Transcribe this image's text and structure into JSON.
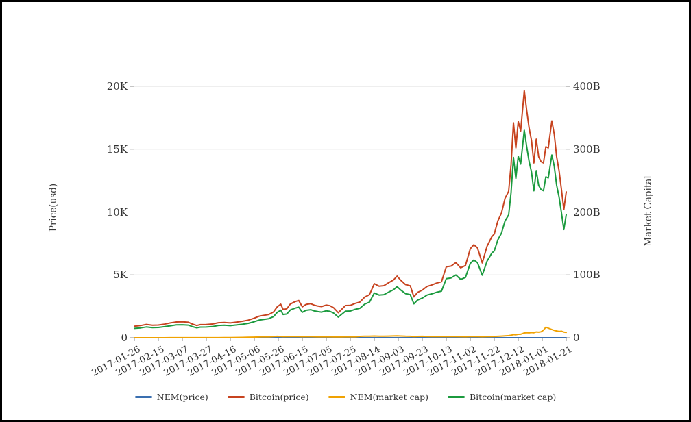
{
  "chart_data": {
    "type": "line",
    "title": "",
    "grid": true,
    "legend_position": "bottom",
    "left_axis": {
      "label": "Price(usd)",
      "max": 20000,
      "ticks": [
        {
          "value": 0,
          "label": "0"
        },
        {
          "value": 5000,
          "label": "5K"
        },
        {
          "value": 10000,
          "label": "10K"
        },
        {
          "value": 15000,
          "label": "15K"
        },
        {
          "value": 20000,
          "label": "20K"
        }
      ]
    },
    "right_axis": {
      "label": "Market Capital",
      "max": 400,
      "ticks": [
        {
          "value": 0,
          "label": "0"
        },
        {
          "value": 100,
          "label": "100B"
        },
        {
          "value": 200,
          "label": "200B"
        },
        {
          "value": 300,
          "label": "300B"
        },
        {
          "value": 400,
          "label": "400B"
        }
      ]
    },
    "x_axis": {
      "label": "",
      "range_days": [
        0,
        360
      ],
      "ticks": [
        {
          "day": 0,
          "label": "2017-01-26"
        },
        {
          "day": 20,
          "label": "2017-02-15"
        },
        {
          "day": 40,
          "label": "2017-03-07"
        },
        {
          "day": 60,
          "label": "2017-03-27"
        },
        {
          "day": 80,
          "label": "2017-04-16"
        },
        {
          "day": 100,
          "label": "2017-05-06"
        },
        {
          "day": 120,
          "label": "2017-05-26"
        },
        {
          "day": 140,
          "label": "2017-06-15"
        },
        {
          "day": 160,
          "label": "2017-07-05"
        },
        {
          "day": 180,
          "label": "2017-07-25"
        },
        {
          "day": 200,
          "label": "2017-08-14"
        },
        {
          "day": 220,
          "label": "2017-09-03"
        },
        {
          "day": 240,
          "label": "2017-09-23"
        },
        {
          "day": 260,
          "label": "2017-10-13"
        },
        {
          "day": 280,
          "label": "2017-11-02"
        },
        {
          "day": 300,
          "label": "2017-11-22"
        },
        {
          "day": 320,
          "label": "2017-12-12"
        },
        {
          "day": 340,
          "label": "2018-01-01"
        },
        {
          "day": 360,
          "label": "2018-01-21"
        }
      ]
    },
    "days": [
      0,
      5,
      10,
      15,
      20,
      25,
      30,
      35,
      40,
      45,
      48,
      52,
      55,
      60,
      65,
      70,
      75,
      80,
      85,
      90,
      95,
      100,
      104,
      108,
      112,
      116,
      119,
      122,
      124,
      127,
      130,
      134,
      137,
      140,
      143,
      147,
      150,
      153,
      156,
      160,
      163,
      166,
      170,
      173,
      176,
      180,
      184,
      188,
      192,
      196,
      200,
      204,
      208,
      212,
      216,
      219,
      222,
      226,
      230,
      233,
      236,
      240,
      244,
      248,
      252,
      256,
      260,
      264,
      268,
      272,
      276,
      280,
      283,
      286,
      290,
      294,
      298,
      300,
      303,
      306,
      309,
      312,
      314,
      316,
      318,
      320,
      322,
      325,
      327,
      329,
      331,
      333,
      335,
      337,
      339,
      341,
      343,
      345,
      348,
      350,
      352,
      354,
      356,
      358,
      360
    ],
    "series": [
      {
        "name": "NEM(price)",
        "axis": "left",
        "color": "#3a6fb0",
        "values": [
          0.004,
          0.004,
          0.005,
          0.005,
          0.005,
          0.006,
          0.007,
          0.007,
          0.007,
          0.008,
          0.008,
          0.008,
          0.009,
          0.01,
          0.012,
          0.015,
          0.025,
          0.035,
          0.045,
          0.06,
          0.085,
          0.105,
          0.145,
          0.18,
          0.175,
          0.22,
          0.26,
          0.23,
          0.19,
          0.2,
          0.215,
          0.23,
          0.22,
          0.185,
          0.2,
          0.195,
          0.18,
          0.17,
          0.165,
          0.175,
          0.165,
          0.155,
          0.14,
          0.16,
          0.17,
          0.165,
          0.175,
          0.24,
          0.28,
          0.27,
          0.3,
          0.28,
          0.27,
          0.29,
          0.31,
          0.33,
          0.3,
          0.27,
          0.26,
          0.22,
          0.24,
          0.25,
          0.23,
          0.22,
          0.21,
          0.205,
          0.22,
          0.215,
          0.21,
          0.195,
          0.185,
          0.205,
          0.21,
          0.2,
          0.185,
          0.2,
          0.22,
          0.23,
          0.26,
          0.29,
          0.33,
          0.38,
          0.43,
          0.56,
          0.52,
          0.6,
          0.62,
          0.85,
          0.9,
          0.86,
          0.92,
          0.88,
          1.02,
          0.98,
          1.05,
          1.35,
          1.87,
          1.7,
          1.45,
          1.3,
          1.2,
          1.1,
          1.15,
          1.0,
          0.95
        ]
      },
      {
        "name": "Bitcoin(price)",
        "axis": "left",
        "color": "#c7431f",
        "values": [
          915,
          965,
          1055,
          995,
          1010,
          1080,
          1175,
          1255,
          1270,
          1230,
          1100,
          970,
          1040,
          1045,
          1090,
          1195,
          1215,
          1175,
          1245,
          1310,
          1400,
          1560,
          1710,
          1780,
          1850,
          2050,
          2450,
          2670,
          2250,
          2300,
          2680,
          2870,
          2960,
          2460,
          2650,
          2710,
          2590,
          2520,
          2480,
          2600,
          2550,
          2390,
          1990,
          2280,
          2560,
          2570,
          2730,
          2840,
          3230,
          3430,
          4300,
          4100,
          4140,
          4380,
          4600,
          4900,
          4580,
          4230,
          4130,
          3250,
          3600,
          3790,
          4080,
          4200,
          4350,
          4450,
          5640,
          5700,
          5980,
          5560,
          5750,
          7080,
          7400,
          7150,
          5950,
          7280,
          8040,
          8250,
          9300,
          9920,
          11100,
          11650,
          13750,
          17100,
          15100,
          17200,
          16450,
          19650,
          18100,
          16700,
          15700,
          13900,
          15800,
          14400,
          14000,
          13900,
          15200,
          15100,
          17250,
          16200,
          14400,
          13300,
          11800,
          10200,
          11600
        ]
      },
      {
        "name": "NEM(market cap)",
        "axis": "right",
        "color": "#f0a202",
        "values": [
          0.04,
          0.04,
          0.05,
          0.05,
          0.05,
          0.05,
          0.06,
          0.06,
          0.06,
          0.07,
          0.07,
          0.07,
          0.08,
          0.09,
          0.11,
          0.14,
          0.23,
          0.32,
          0.41,
          0.54,
          0.77,
          0.95,
          1.31,
          1.62,
          1.58,
          1.98,
          2.34,
          2.07,
          1.71,
          1.8,
          1.94,
          2.07,
          1.98,
          1.67,
          1.8,
          1.76,
          1.62,
          1.53,
          1.49,
          1.58,
          1.49,
          1.4,
          1.26,
          1.44,
          1.53,
          1.49,
          1.58,
          2.16,
          2.52,
          2.43,
          2.7,
          2.52,
          2.43,
          2.61,
          2.79,
          2.97,
          2.7,
          2.43,
          2.34,
          1.98,
          2.16,
          2.25,
          2.07,
          1.98,
          1.89,
          1.85,
          1.98,
          1.94,
          1.89,
          1.76,
          1.67,
          1.85,
          1.89,
          1.8,
          1.67,
          1.8,
          1.98,
          2.07,
          2.34,
          2.61,
          2.97,
          3.42,
          3.87,
          5.04,
          4.68,
          5.4,
          5.58,
          7.65,
          8.1,
          7.74,
          8.28,
          7.92,
          9.18,
          8.82,
          9.45,
          12.15,
          16.83,
          15.3,
          13.05,
          11.7,
          10.8,
          9.9,
          10.35,
          9.0,
          8.55
        ]
      },
      {
        "name": "Bitcoin(market cap)",
        "axis": "right",
        "color": "#1b9a3e",
        "values": [
          14.8,
          15.6,
          17.1,
          16.1,
          16.4,
          17.5,
          19.0,
          20.4,
          20.6,
          20.0,
          17.9,
          15.8,
          16.9,
          17.0,
          17.7,
          19.5,
          19.8,
          19.2,
          20.3,
          21.4,
          22.9,
          25.5,
          28.0,
          29.1,
          30.3,
          33.6,
          40.2,
          43.8,
          36.9,
          37.7,
          44.0,
          47.1,
          48.6,
          40.4,
          43.6,
          44.6,
          42.6,
          41.5,
          40.8,
          42.8,
          42.0,
          39.4,
          32.8,
          37.6,
          42.2,
          42.4,
          45.1,
          46.9,
          53.4,
          56.7,
          71.2,
          67.9,
          68.6,
          72.6,
          76.3,
          81.3,
          76.0,
          70.2,
          68.6,
          54.0,
          59.8,
          63.0,
          67.9,
          69.9,
          72.4,
          74.1,
          94.0,
          95.1,
          99.8,
          92.8,
          96.0,
          118.3,
          123.7,
          119.5,
          99.5,
          121.9,
          134.7,
          138.2,
          155.9,
          166.3,
          186.1,
          195.4,
          230.7,
          286.9,
          253.5,
          288.8,
          276.2,
          330.1,
          304.1,
          280.7,
          263.9,
          233.8,
          265.8,
          242.2,
          235.6,
          233.9,
          256.0,
          254.3,
          290.7,
          273.0,
          242.6,
          224.2,
          199.0,
          172.1,
          195.7
        ]
      }
    ],
    "colors": {
      "grid": "#dcdcdc",
      "zero_line": "#8f8f8f",
      "tick": "#8a8a8a",
      "text": "#333333"
    }
  }
}
